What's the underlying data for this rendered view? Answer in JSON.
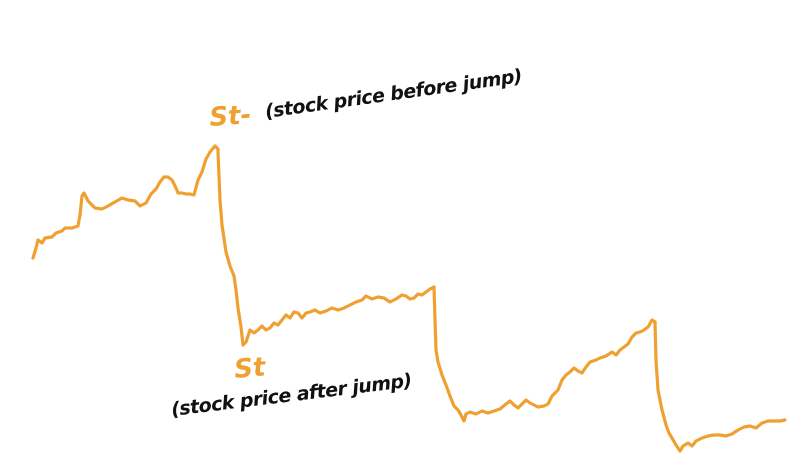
{
  "colors": {
    "path": "#f0a030",
    "symbol": "#f0a030",
    "note": "#111111"
  },
  "labels": {
    "before_symbol": "St-",
    "before_note": "(stock price before jump)",
    "after_symbol": "St",
    "after_note": "(stock price after jump)"
  }
}
